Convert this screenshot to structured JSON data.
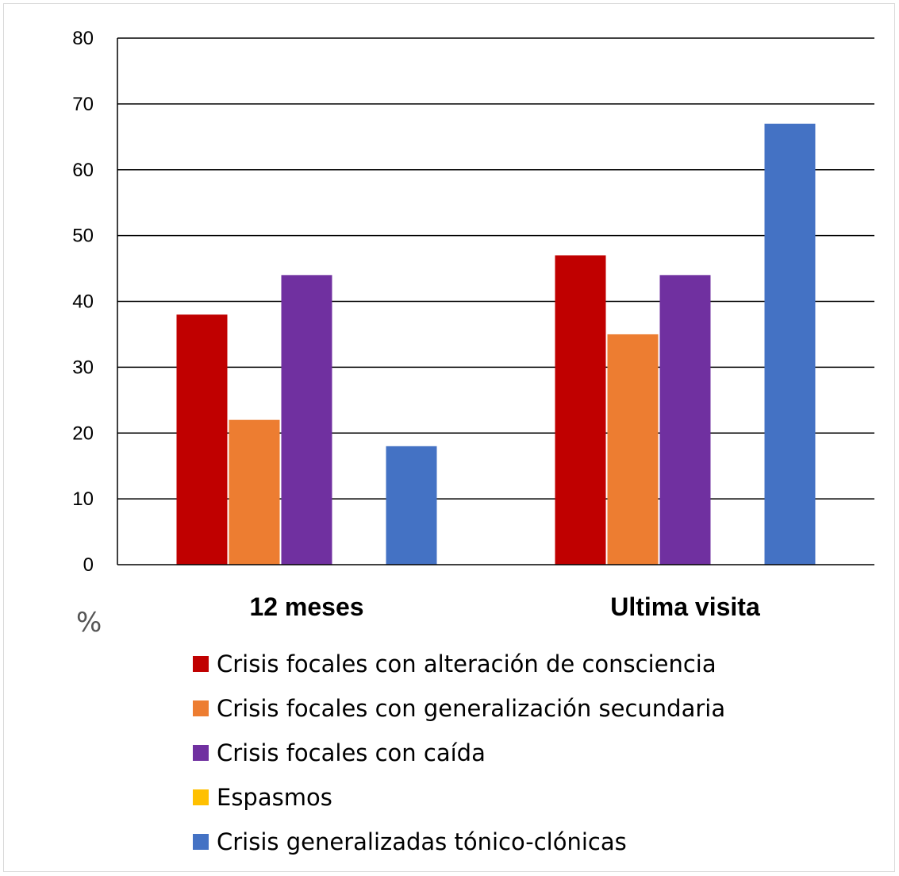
{
  "chart_data": {
    "type": "bar",
    "categories": [
      "12 meses",
      "Ultima visita"
    ],
    "unit_label": "%",
    "ylim": [
      0,
      80
    ],
    "yticks": [
      0,
      10,
      20,
      30,
      40,
      50,
      60,
      70,
      80
    ],
    "grid": true,
    "legend_position": "bottom",
    "series": [
      {
        "name": "Crisis focales con alteración de consciencia",
        "color": "#c00000",
        "values": [
          38,
          47
        ]
      },
      {
        "name": "Crisis focales con generalización secundaria",
        "color": "#ed7d31",
        "values": [
          22,
          35
        ]
      },
      {
        "name": "Crisis focales con caída",
        "color": "#7030a0",
        "values": [
          44,
          44
        ]
      },
      {
        "name": "Espasmos",
        "color": "#ffc000",
        "values": [
          0,
          0
        ]
      },
      {
        "name": "Crisis generalizadas tónico-clónicas",
        "color": "#4472c4",
        "values": [
          18,
          67
        ]
      }
    ]
  }
}
